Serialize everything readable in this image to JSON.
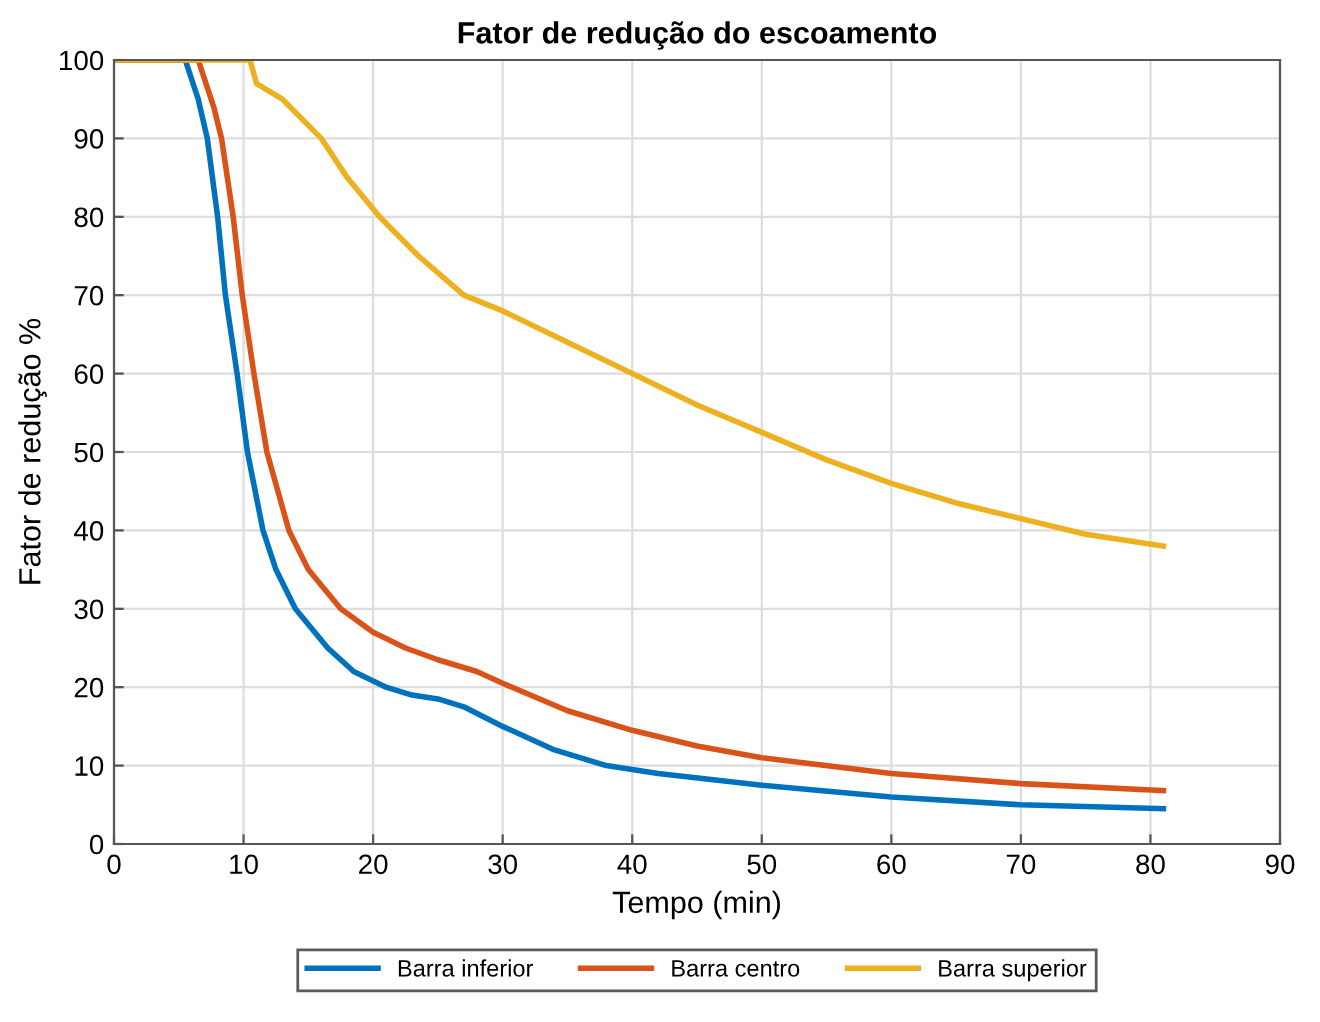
{
  "chart_data": {
    "type": "line",
    "title": "Fator de redução do escoamento",
    "xlabel": "Tempo (min)",
    "ylabel": "Fator de redução %",
    "xlim": [
      0,
      90
    ],
    "xticks": [
      0,
      10,
      20,
      30,
      40,
      50,
      60,
      70,
      80,
      90
    ],
    "ylim": [
      0,
      100
    ],
    "yticks": [
      0,
      10,
      20,
      30,
      40,
      50,
      60,
      70,
      80,
      90,
      100
    ],
    "grid": true,
    "legend": "bottom",
    "line_style": "solid",
    "series": [
      {
        "name": "Barra inferior",
        "color": "#0072bd",
        "x": [
          0,
          5.5,
          6.5,
          7.2,
          8,
          8.6,
          9.5,
          10.3,
          11.5,
          12.5,
          14,
          16.5,
          18.5,
          21,
          23,
          25,
          27,
          30,
          34,
          38,
          42,
          50,
          60,
          70,
          81
        ],
        "values": [
          100,
          100,
          95,
          90,
          80,
          70,
          60,
          50,
          40,
          35,
          30,
          25,
          22,
          20,
          19,
          18.5,
          17.5,
          15,
          12,
          10,
          9,
          7.5,
          6,
          5,
          4.5
        ]
      },
      {
        "name": "Barra centro",
        "color": "#d95319",
        "x": [
          0,
          6.5,
          7.7,
          8.3,
          9.2,
          9.9,
          10.8,
          11.8,
          13.5,
          15,
          17.5,
          20,
          22.5,
          25,
          28,
          30,
          35,
          40,
          45,
          50,
          60,
          70,
          81
        ],
        "values": [
          100,
          100,
          94,
          90,
          80,
          70,
          60,
          50,
          40,
          35,
          30,
          27,
          25,
          23.5,
          22,
          20.5,
          17,
          14.5,
          12.5,
          11,
          9,
          7.7,
          6.8
        ]
      },
      {
        "name": "Barra superior",
        "color": "#edb120",
        "x": [
          0,
          10.5,
          11,
          13,
          16,
          18,
          20.5,
          23.5,
          27,
          30,
          35,
          40,
          45,
          50,
          55,
          60,
          65,
          70,
          75,
          81
        ],
        "values": [
          100,
          100,
          97,
          95,
          90,
          85,
          80,
          75,
          70,
          68,
          64,
          60,
          56,
          52.5,
          49,
          46,
          43.5,
          41.5,
          39.5,
          38
        ]
      }
    ]
  }
}
